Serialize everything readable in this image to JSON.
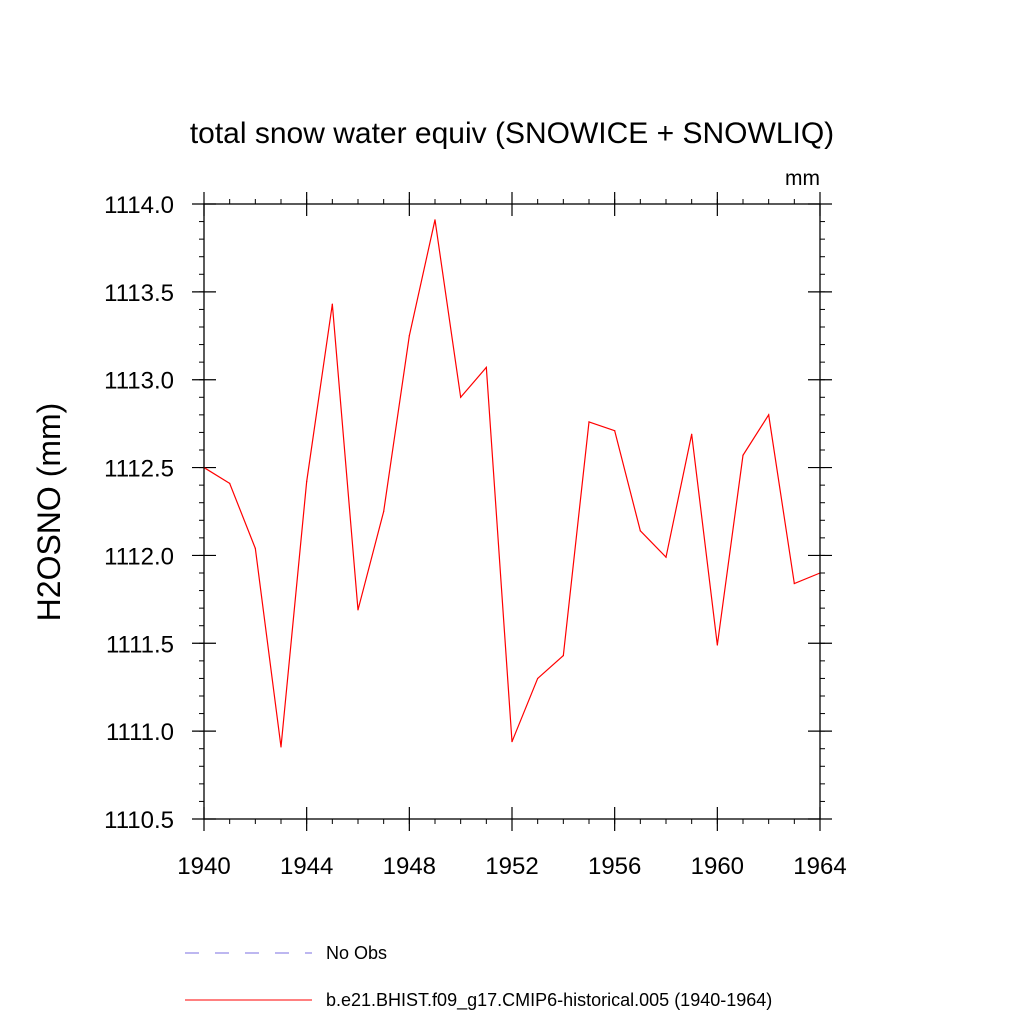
{
  "chart_data": {
    "type": "line",
    "title": "total snow water equiv (SNOWICE + SNOWLIQ)",
    "units": "mm",
    "ylabel": "H2OSNO  (mm)",
    "xlabel": "",
    "xlim": [
      1940,
      1964
    ],
    "ylim": [
      1110.5,
      1114.0
    ],
    "x_ticks": [
      1940,
      1944,
      1948,
      1952,
      1956,
      1960,
      1964
    ],
    "x_tick_labels": [
      "1940",
      "1944",
      "1948",
      "1952",
      "1956",
      "1960",
      "1964"
    ],
    "y_ticks": [
      1110.5,
      1111.0,
      1111.5,
      1112.0,
      1112.5,
      1113.0,
      1113.5,
      1114.0
    ],
    "y_tick_labels": [
      "1110.5",
      "1111.0",
      "1111.5",
      "1112.0",
      "1112.5",
      "1113.0",
      "1113.5",
      "1114.0"
    ],
    "grid": false,
    "legend_position": "bottom",
    "x": [
      1940,
      1941,
      1942,
      1943,
      1944,
      1945,
      1946,
      1947,
      1948,
      1949,
      1950,
      1951,
      1952,
      1953,
      1954,
      1955,
      1956,
      1957,
      1958,
      1959,
      1960,
      1961,
      1962,
      1963,
      1964
    ],
    "series": [
      {
        "name": "b.e21.BHIST.f09_g17.CMIP6-historical.005 (1940-1964)",
        "color": "#ff0000",
        "style": "solid",
        "values": [
          1112.5,
          1112.41,
          1112.04,
          1110.91,
          1112.42,
          1113.43,
          1111.69,
          1112.25,
          1113.25,
          1113.91,
          1112.9,
          1113.07,
          1110.94,
          1111.3,
          1111.43,
          1112.76,
          1112.71,
          1112.14,
          1111.99,
          1112.69,
          1111.49,
          1112.57,
          1112.8,
          1111.84,
          1111.9
        ]
      }
    ],
    "legend": [
      {
        "label": "No Obs",
        "color": "#7b6fe0",
        "style": "dashed"
      },
      {
        "label": "b.e21.BHIST.f09_g17.CMIP6-historical.005 (1940-1964)",
        "color": "#ff0000",
        "style": "solid"
      }
    ]
  }
}
